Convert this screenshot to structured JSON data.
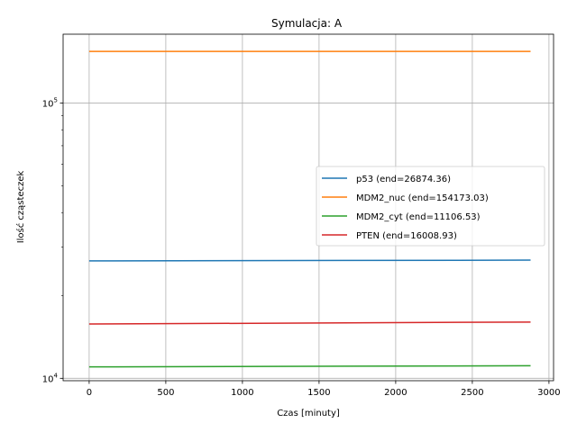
{
  "chart_data": {
    "type": "line",
    "title": "Symulacja: A",
    "xlabel": "Czas [minuty]",
    "ylabel": "Ilość cząsteczek",
    "xlim": [
      -170,
      3030
    ],
    "ylim": [
      9800,
      178000
    ],
    "yscale": "log",
    "grid": true,
    "legend_position": "center-right",
    "x_ticks": [
      0,
      500,
      1000,
      1500,
      2000,
      2500,
      3000
    ],
    "x_tick_labels": [
      "0",
      "500",
      "1000",
      "1500",
      "2000",
      "2500",
      "3000"
    ],
    "y_ticks": [
      10000,
      100000
    ],
    "y_tick_labels": [
      {
        "base": "10",
        "exp": "4"
      },
      {
        "base": "10",
        "exp": "5"
      }
    ],
    "y_minor_ticks": [
      20000,
      30000,
      40000,
      50000,
      60000,
      70000,
      80000,
      90000
    ],
    "series": [
      {
        "name": "p53 (end=26874.36)",
        "color": "#1f77b4",
        "x": [
          0,
          2880
        ],
        "y": [
          26700,
          26874.36
        ]
      },
      {
        "name": "MDM2_nuc (end=154173.03)",
        "color": "#ff7f0e",
        "x": [
          0,
          2880
        ],
        "y": [
          154173.03,
          154173.03
        ]
      },
      {
        "name": "MDM2_cyt (end=11106.53)",
        "color": "#2ca02c",
        "x": [
          0,
          2880
        ],
        "y": [
          11000,
          11106.53
        ]
      },
      {
        "name": "PTEN (end=16008.93)",
        "color": "#d62728",
        "x": [
          0,
          2880
        ],
        "y": [
          15750,
          16008.93
        ]
      }
    ]
  }
}
